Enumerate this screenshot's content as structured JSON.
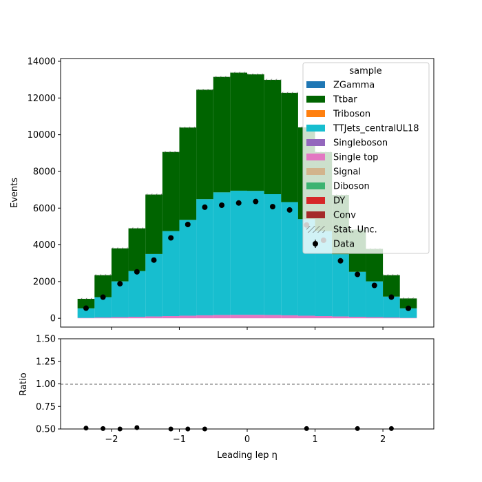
{
  "chart_data": [
    {
      "type": "bar",
      "stacked": true,
      "histogram": true,
      "xlabel": "Leading lep η",
      "ylabel": "Events",
      "xlim": [
        -2.75,
        2.75
      ],
      "ylim": [
        -480,
        14150
      ],
      "xticks": [
        -2,
        -1,
        0,
        1,
        2
      ],
      "yticks": [
        0,
        2000,
        4000,
        6000,
        8000,
        10000,
        12000,
        14000
      ],
      "bin_edges": [
        -2.5,
        -2.25,
        -2.0,
        -1.75,
        -1.5,
        -1.25,
        -1.0,
        -0.75,
        -0.5,
        -0.25,
        0.0,
        0.25,
        0.5,
        0.75,
        1.0,
        1.25,
        1.5,
        1.75,
        2.0,
        2.25,
        2.5
      ],
      "series": [
        {
          "name": "Single top",
          "color": "#e377c2",
          "values": [
            20,
            40,
            60,
            80,
            100,
            120,
            140,
            160,
            180,
            190,
            190,
            180,
            160,
            140,
            120,
            100,
            80,
            60,
            40,
            20
          ]
        },
        {
          "name": "TTJets_centralUL18",
          "color": "#17becf",
          "values": [
            520,
            1110,
            1950,
            2490,
            3400,
            4630,
            5220,
            6330,
            6680,
            6760,
            6750,
            6580,
            6170,
            5260,
            4630,
            3390,
            2450,
            1950,
            1140,
            520
          ]
        },
        {
          "name": "Ttbar",
          "color": "#006400",
          "values": [
            520,
            1200,
            1800,
            2330,
            3240,
            4310,
            5030,
            5960,
            6290,
            6430,
            6350,
            6230,
            5950,
            5000,
            4300,
            3230,
            2300,
            1770,
            1170,
            540
          ]
        }
      ],
      "data_points": {
        "name": "Data",
        "x": [
          -2.375,
          -2.125,
          -1.875,
          -1.625,
          -1.375,
          -1.125,
          -0.875,
          -0.625,
          -0.375,
          -0.125,
          0.125,
          0.375,
          0.625,
          0.875,
          1.125,
          1.375,
          1.625,
          1.875,
          2.125,
          2.375
        ],
        "y": [
          550,
          1150,
          1880,
          2530,
          3170,
          4380,
          5110,
          6050,
          6160,
          6280,
          6360,
          6080,
          5900,
          5080,
          4250,
          3130,
          2390,
          1790,
          1150,
          540
        ]
      },
      "legend": {
        "title": "sample",
        "placement": "upper right",
        "entries": [
          {
            "label": "ZGamma",
            "color": "#1f77b4",
            "kind": "patch"
          },
          {
            "label": "Ttbar",
            "color": "#006400",
            "kind": "patch"
          },
          {
            "label": "Triboson",
            "color": "#ff7f0e",
            "kind": "patch"
          },
          {
            "label": "TTJets_centralUL18",
            "color": "#17becf",
            "kind": "patch"
          },
          {
            "label": "Singleboson",
            "color": "#9467bd",
            "kind": "patch"
          },
          {
            "label": "Single top",
            "color": "#e377c2",
            "kind": "patch"
          },
          {
            "label": "Signal",
            "color": "#d2b48c",
            "kind": "patch"
          },
          {
            "label": "Diboson",
            "color": "#3cb371",
            "kind": "patch"
          },
          {
            "label": "DY",
            "color": "#d62728",
            "kind": "patch"
          },
          {
            "label": "Conv",
            "color": "#a52a2a",
            "kind": "patch"
          },
          {
            "label": "Stat. Unc.",
            "color": "#555555",
            "kind": "hatch"
          },
          {
            "label": "Data",
            "color": "#000000",
            "kind": "errorbar"
          }
        ]
      }
    },
    {
      "type": "scatter",
      "xlabel": "Leading lep η",
      "ylabel": "Ratio",
      "xlim": [
        -2.75,
        2.75
      ],
      "ylim": [
        0.5,
        1.5
      ],
      "xticks": [
        -2,
        -1,
        0,
        1,
        2
      ],
      "yticks": [
        0.5,
        0.75,
        1.0,
        1.25,
        1.5
      ],
      "ytick_labels": [
        "0.50",
        "0.75",
        "1.00",
        "1.25",
        "1.50"
      ],
      "reference_line": 1.0,
      "x": [
        -2.375,
        -2.125,
        -1.875,
        -1.625,
        -1.125,
        -0.875,
        -0.625,
        0.875,
        1.625,
        2.125
      ],
      "y": [
        0.51,
        0.505,
        0.5,
        0.515,
        0.5,
        0.5,
        0.5,
        0.505,
        0.505,
        0.505
      ]
    }
  ]
}
